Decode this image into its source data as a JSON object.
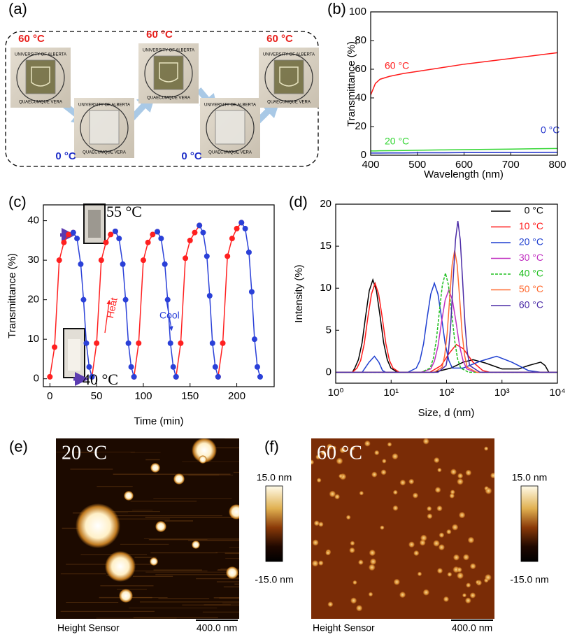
{
  "panel_a": {
    "label": "(a)",
    "photos": [
      {
        "temperature": "60 °C"
      },
      {
        "temperature": "0 °C"
      },
      {
        "temperature": "60 °C"
      },
      {
        "temperature": "0 °C"
      },
      {
        "temperature": "60 °C"
      }
    ],
    "seal_top": "UNIVERSITY OF ALBERTA",
    "seal_bottom": "QUAECUMQUE VERA"
  },
  "chart_data": [
    {
      "type": "line",
      "panel": "(b)",
      "x_label": "Wavelength (nm)",
      "y_label": "Transmittance (%)",
      "x": [
        400,
        410,
        420,
        440,
        470,
        500,
        550,
        600,
        650,
        700,
        750,
        800
      ],
      "series": [
        {
          "name": "60 °C",
          "color": "#ff1a1a",
          "values": [
            42,
            50,
            53,
            55,
            57,
            58.5,
            61,
            63.5,
            65.5,
            67.5,
            69.5,
            71.5
          ]
        },
        {
          "name": "20 °C",
          "color": "#33d633",
          "values": [
            3,
            3,
            3.1,
            3.2,
            3.3,
            3.5,
            3.7,
            3.9,
            4.1,
            4.3,
            4.5,
            4.7
          ]
        },
        {
          "name": "0 °C",
          "color": "#2233cc",
          "values": [
            1.5,
            1.5,
            1.5,
            1.6,
            1.6,
            1.7,
            1.7,
            1.8,
            1.8,
            1.9,
            1.9,
            2.0
          ]
        }
      ],
      "series_labels": true,
      "xlim": [
        400,
        800
      ],
      "xticks": [
        400,
        500,
        600,
        700,
        800
      ],
      "ylim": [
        0,
        100
      ],
      "yticks": [
        0,
        20,
        40,
        60,
        80,
        100
      ]
    },
    {
      "type": "line",
      "panel": "(c)",
      "markers": true,
      "x_label": "Time (min)",
      "y_label": "Transmittance (%)",
      "series": [
        {
          "name": "Heat",
          "color": "#ff2020",
          "x": [
            0,
            5,
            10,
            15,
            20,
            25,
            null,
            45,
            50,
            55,
            60,
            65,
            70,
            null,
            90,
            95,
            100,
            105,
            110,
            115,
            null,
            135,
            140,
            145,
            150,
            155,
            160,
            null,
            180,
            185,
            190,
            195,
            200,
            205
          ],
          "values": [
            0.5,
            8,
            30,
            34.5,
            36.5,
            37,
            null,
            0.5,
            9,
            30,
            34.5,
            36.5,
            37.3,
            null,
            0.5,
            9,
            30,
            34.5,
            36.5,
            37.2,
            null,
            0.5,
            9,
            30.5,
            35,
            37,
            38.8,
            null,
            0.5,
            9,
            31,
            35.5,
            38,
            39.5
          ]
        },
        {
          "name": "Cool",
          "color": "#2a40d8",
          "x": [
            25,
            29,
            33,
            36,
            39,
            42,
            45,
            null,
            70,
            74,
            78,
            81,
            84,
            87,
            90,
            null,
            115,
            119,
            123,
            126,
            129,
            132,
            135,
            null,
            160,
            164,
            168,
            171,
            174,
            177,
            180,
            null,
            205,
            209,
            213,
            216,
            219,
            222,
            225
          ],
          "values": [
            37,
            35.5,
            29,
            20,
            9,
            3,
            0.5,
            null,
            37.3,
            35.5,
            29,
            20,
            9,
            3,
            0.5,
            null,
            37.2,
            35.5,
            29,
            20,
            9,
            3,
            0.5,
            null,
            38.8,
            37,
            31,
            21,
            9,
            3,
            0.5,
            null,
            39.5,
            38,
            32,
            22,
            10,
            3,
            0.5
          ]
        }
      ],
      "series_labels": true,
      "annotations": [
        "55 °C",
        "40 °C"
      ],
      "xlim": [
        -7,
        240
      ],
      "xticks": [
        0,
        50,
        100,
        150,
        200
      ],
      "ylim": [
        -2,
        44
      ],
      "yticks": [
        0,
        10,
        20,
        30,
        40
      ]
    },
    {
      "type": "line",
      "panel": "(d)",
      "xscale": "log",
      "legend": "upper right",
      "x_label": "Size, d (nm)",
      "y_label": "Intensity (%)",
      "series": [
        {
          "name": "0 °C",
          "color": "#000000",
          "x": [
            1,
            2,
            2.21,
            2.57,
            2.99,
            3.47,
            4.03,
            4.68,
            5.43,
            6.31,
            7.33,
            8.51,
            9.89,
            13,
            60,
            120,
            200,
            300,
            500,
            1000,
            2000,
            3000,
            5000,
            6000,
            7000,
            10000
          ],
          "values": [
            0,
            0,
            0.5,
            1.5,
            3.5,
            6.7,
            9.7,
            11,
            9.7,
            6.7,
            3.5,
            1.5,
            0.5,
            0,
            0,
            0.5,
            1.2,
            1.5,
            1.1,
            0.4,
            0.4,
            0.8,
            1.2,
            0.8,
            0,
            0
          ]
        },
        {
          "name": "10 °C",
          "color": "#ff1a1a",
          "x": [
            1,
            2,
            2.42,
            2.82,
            3.28,
            3.8,
            4.42,
            5.13,
            5.95,
            6.92,
            8.04,
            9.33,
            10.8,
            14,
            50,
            80,
            110,
            150,
            200,
            300,
            450,
            600,
            10000
          ],
          "values": [
            0,
            0,
            0.5,
            1.4,
            3.4,
            6.5,
            9.3,
            10.6,
            9.3,
            6.5,
            3.4,
            1.4,
            0.5,
            0,
            0,
            0.8,
            2.2,
            3.3,
            2.8,
            1.2,
            0.2,
            0,
            0
          ]
        },
        {
          "name": "20 °C",
          "color": "#1f3fd0",
          "x": [
            1,
            3,
            4,
            5,
            6,
            7,
            8,
            20,
            28.5,
            33.1,
            38.5,
            44.7,
            51.9,
            60.3,
            70,
            81.3,
            94.4,
            110,
            127,
            200,
            400,
            800,
            1500,
            3000,
            5000,
            10000
          ],
          "values": [
            0,
            0,
            1.2,
            1.9,
            1.2,
            0.2,
            0,
            0,
            0.5,
            1.4,
            3.4,
            6.5,
            9.3,
            10.6,
            9.3,
            6.5,
            3.4,
            1.4,
            0.5,
            0.5,
            1.3,
            1.9,
            1.2,
            0.2,
            0,
            0
          ]
        },
        {
          "name": "30 °C",
          "color": "#c030c0",
          "x": [
            1,
            35,
            51.9,
            60.3,
            70,
            81.3,
            94.4,
            110,
            127.6,
            148,
            172,
            200,
            232,
            330,
            10000
          ],
          "values": [
            0,
            0,
            0.4,
            1.3,
            3.1,
            6.0,
            8.6,
            9.8,
            8.6,
            6.0,
            3.1,
            1.3,
            0.4,
            0,
            0
          ]
        },
        {
          "name": "40 °C",
          "color": "#1fbf1f",
          "dashed": true,
          "x": [
            1,
            35,
            50.7,
            57.5,
            65.3,
            74.1,
            84.1,
            95.5,
            108,
            123,
            140,
            158,
            180,
            250,
            10000
          ],
          "values": [
            0,
            0,
            0.5,
            1.6,
            3.8,
            7.2,
            10.4,
            11.8,
            10.4,
            7.2,
            3.8,
            1.6,
            0.5,
            0,
            0
          ]
        },
        {
          "name": "50 °C",
          "color": "#ff6a30",
          "x": [
            1,
            60,
            83.4,
            92.5,
            102.6,
            113.8,
            126.2,
            140,
            155.2,
            172.2,
            191,
            211.8,
            235,
            350,
            10000
          ],
          "values": [
            0,
            0,
            0.6,
            2.0,
            4.6,
            8.8,
            12.8,
            14.5,
            12.8,
            8.8,
            4.6,
            2.0,
            0.6,
            0,
            0
          ]
        },
        {
          "name": "60 °C",
          "color": "#4b2ba6",
          "x": [
            1,
            70,
            98.1,
            108.1,
            119.3,
            131.5,
            145.1,
            160,
            176.4,
            194.5,
            214.6,
            236.6,
            261,
            400,
            10000
          ],
          "values": [
            0,
            0,
            0.8,
            2.4,
            5.8,
            11,
            15.8,
            18,
            15.8,
            11,
            5.8,
            2.4,
            0.8,
            0,
            0
          ]
        }
      ],
      "xlim": [
        1,
        10000
      ],
      "xticks": [
        {
          "value": 1,
          "label": "10⁰"
        },
        {
          "value": 10,
          "label": "10¹"
        },
        {
          "value": 100,
          "label": "10²"
        },
        {
          "value": 1000,
          "label": "10³"
        },
        {
          "value": 10000,
          "label": "10⁴"
        }
      ],
      "ylim": [
        -1.3,
        20
      ],
      "yticks": [
        0,
        5,
        10,
        15,
        20
      ]
    }
  ],
  "afm": [
    {
      "label": "(e)",
      "temperature": "20 °C",
      "scale_max": "15.0 nm",
      "scale_min": "-15.0 nm",
      "channel": "Height Sensor",
      "scale_bar": "400.0 nm"
    },
    {
      "label": "(f)",
      "temperature": "60 °C",
      "scale_max": "15.0 nm",
      "scale_min": "-15.0 nm",
      "channel": "Height Sensor",
      "scale_bar": "400.0 nm"
    }
  ]
}
